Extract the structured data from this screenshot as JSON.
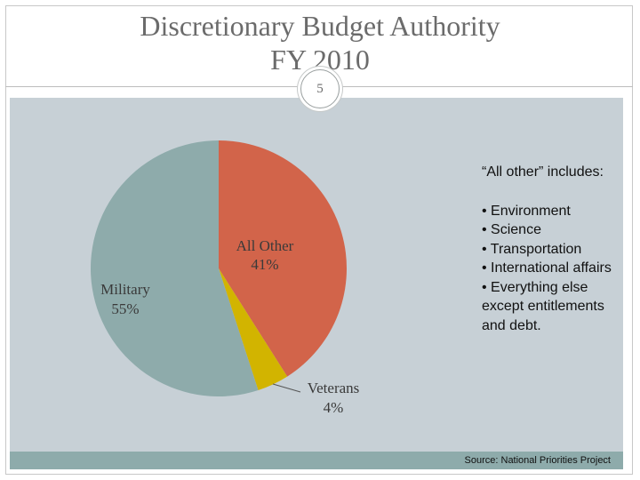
{
  "slide": {
    "title_line1": "Discretionary Budget Authority",
    "title_line2": "FY 2010",
    "number": "5"
  },
  "note": {
    "heading": "“All other” includes:",
    "items": [
      "• Environment",
      "• Science",
      "• Transportation",
      "• International affairs",
      "• Everything else except entitlements and debt."
    ]
  },
  "source": "Source: National Priorities Project",
  "colors": {
    "background_panel": "#c7d0d6",
    "footer_bar": "#8eabab",
    "title_text": "#6b6b6b"
  },
  "chart_data": {
    "type": "pie",
    "title": "Discretionary Budget Authority FY 2010",
    "slices": [
      {
        "label": "All Other",
        "value": 41,
        "value_label": "41%",
        "color": "#d2644a"
      },
      {
        "label": "Veterans",
        "value": 4,
        "value_label": "4%",
        "color": "#d2b400"
      },
      {
        "label": "Military",
        "value": 55,
        "value_label": "55%",
        "color": "#8eabab"
      }
    ],
    "start": "12 o'clock",
    "direction": "clockwise"
  }
}
